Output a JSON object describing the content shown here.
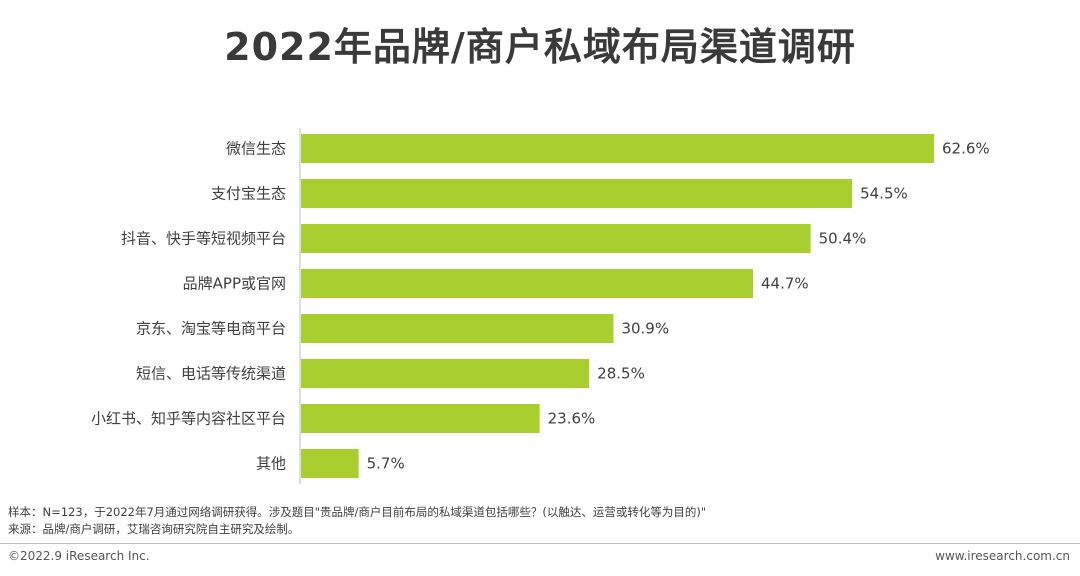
{
  "page": {
    "title": "2022年品牌/商户私域布局渠道调研",
    "sample_note": "样本：N=123，于2022年7月通过网络调研获得。涉及题目\"贵品牌/商户目前布局的私域渠道包括哪些？(以触达、运营或转化等为目的)\"",
    "source_note": "来源：品牌/商户调研，艾瑞咨询研究院自主研究及绘制。",
    "copyright": "©2022.9 iResearch Inc.",
    "website": "www.iresearch.com.cn"
  },
  "chart_data": {
    "type": "bar",
    "orientation": "horizontal",
    "categories": [
      "微信生态",
      "支付宝生态",
      "抖音、快手等短视频平台",
      "品牌APP或官网",
      "京东、淘宝等电商平台",
      "短信、电话等传统渠道",
      "小红书、知乎等内容社区平台",
      "其他"
    ],
    "values": [
      62.6,
      54.5,
      50.4,
      44.7,
      30.9,
      28.5,
      23.6,
      5.7
    ],
    "value_labels": [
      "62.6%",
      "54.5%",
      "50.4%",
      "44.7%",
      "30.9%",
      "28.5%",
      "23.6%",
      "5.7%"
    ],
    "unit": "%",
    "grid": false,
    "bar_color": "#a8cf2f",
    "axis_color": "#bfbfbf"
  }
}
